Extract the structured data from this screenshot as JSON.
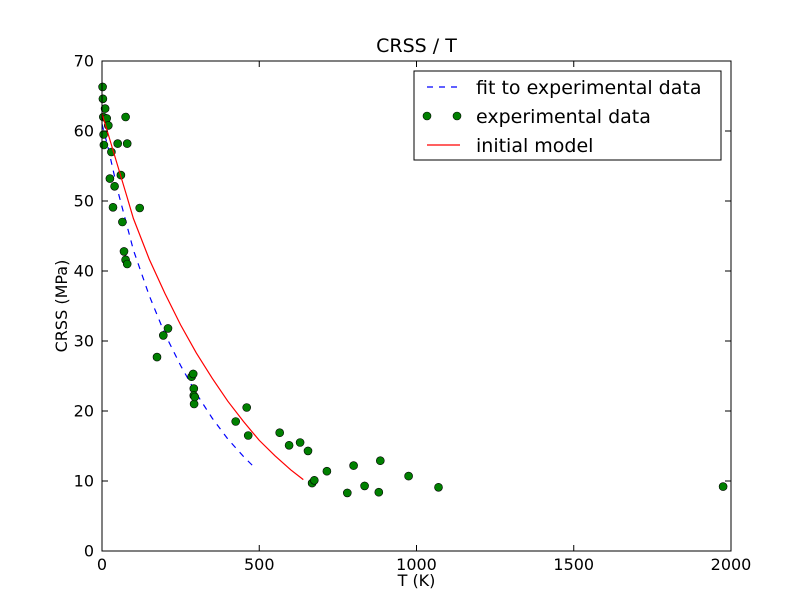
{
  "chart_data": {
    "type": "scatter",
    "title": "CRSS / T",
    "xlabel": "T (K)",
    "ylabel": "CRSS (MPa)",
    "xlim": [
      0,
      2000
    ],
    "ylim": [
      0,
      70
    ],
    "xticks": [
      "0",
      "500",
      "1000",
      "1500",
      "2000"
    ],
    "yticks": [
      "0",
      "10",
      "20",
      "30",
      "40",
      "50",
      "60",
      "70"
    ],
    "grid": false,
    "legend_position": "top-right",
    "series": [
      {
        "name": "fit to experimental data",
        "kind": "line",
        "style": "dashed",
        "color": "#0000ff",
        "x": [
          0,
          20,
          50,
          100,
          150,
          200,
          250,
          300,
          350,
          400,
          450,
          490
        ],
        "y": [
          61.0,
          57.5,
          51.5,
          43.0,
          36.5,
          31.0,
          26.5,
          22.5,
          19.0,
          16.0,
          13.5,
          11.7
        ]
      },
      {
        "name": "experimental data",
        "kind": "scatter",
        "color": "#008000",
        "x": [
          2,
          3,
          4,
          5,
          6,
          10,
          15,
          20,
          25,
          30,
          35,
          40,
          50,
          60,
          65,
          70,
          75,
          75,
          80,
          80,
          120,
          175,
          195,
          210,
          285,
          290,
          292,
          292,
          293,
          295,
          425,
          460,
          465,
          565,
          595,
          630,
          655,
          668,
          675,
          715,
          780,
          800,
          835,
          880,
          885,
          975,
          1070,
          1975
        ],
        "y": [
          66.3,
          64.6,
          62.0,
          59.5,
          58.0,
          63.2,
          61.8,
          60.8,
          53.2,
          57.0,
          49.1,
          52.1,
          58.2,
          53.7,
          47.0,
          42.8,
          41.6,
          62.0,
          58.2,
          41.0,
          49.0,
          27.7,
          30.8,
          31.8,
          24.9,
          25.3,
          23.2,
          22.2,
          21.0,
          22.0,
          18.5,
          20.5,
          16.5,
          16.9,
          15.1,
          15.5,
          14.3,
          9.7,
          10.1,
          11.4,
          8.3,
          12.2,
          9.3,
          8.4,
          12.9,
          10.7,
          9.1,
          9.2
        ]
      },
      {
        "name": "initial model",
        "kind": "line",
        "style": "solid",
        "color": "#ff0000",
        "x": [
          0,
          20,
          40,
          60,
          80,
          100,
          150,
          200,
          250,
          300,
          350,
          400,
          450,
          500,
          550,
          600,
          640
        ],
        "y": [
          62.5,
          59.5,
          56.5,
          53.5,
          50.5,
          47.5,
          41.7,
          36.8,
          32.3,
          28.3,
          24.7,
          21.4,
          18.5,
          15.8,
          13.6,
          11.6,
          10.2
        ]
      }
    ]
  }
}
